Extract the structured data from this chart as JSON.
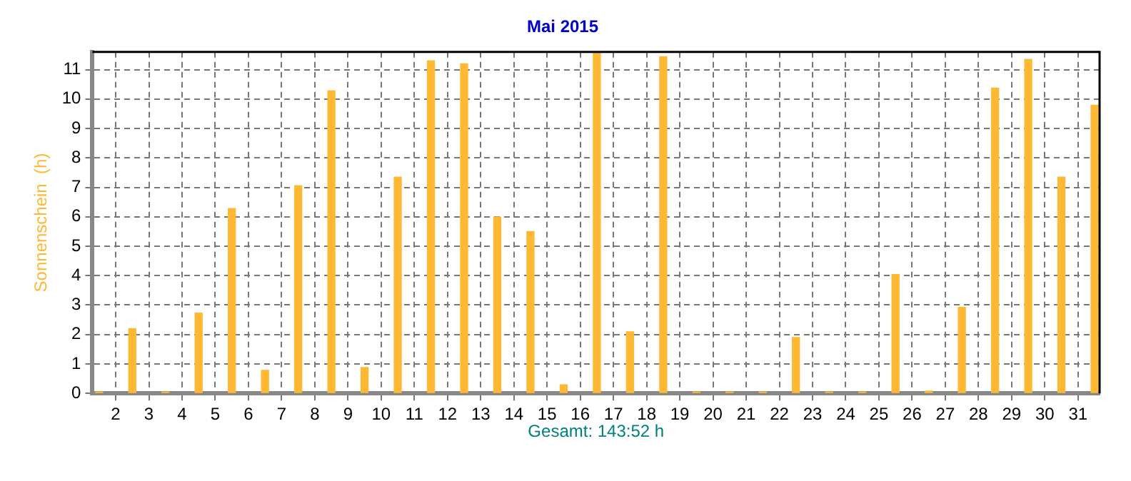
{
  "chart_data": {
    "type": "bar",
    "title": "Mai 2015",
    "ylabel": "Sonnenschein  (h)",
    "annotations": [
      "Gesamt: 143:52 h"
    ],
    "x": [
      1.5,
      2.5,
      3.5,
      4.5,
      5.5,
      6.5,
      7.5,
      8.5,
      9.5,
      10.5,
      11.5,
      12.5,
      13.5,
      14.5,
      15.5,
      16.5,
      17.5,
      18.5,
      19.5,
      20.5,
      21.5,
      22.5,
      23.5,
      24.5,
      25.5,
      26.5,
      27.5,
      28.5,
      29.5,
      30.5,
      31.5
    ],
    "values": [
      0.05,
      2.2,
      0.05,
      2.73,
      6.28,
      0.78,
      7.06,
      10.28,
      0.88,
      7.35,
      11.3,
      11.2,
      5.99,
      5.5,
      0.29,
      11.6,
      2.09,
      11.44,
      0.05,
      0.05,
      0.05,
      1.9,
      0.05,
      0.05,
      4.04,
      0.08,
      2.92,
      10.37,
      11.35,
      7.35,
      9.79
    ],
    "color": "#ffb833",
    "xlim": [
      1.3,
      31.65
    ],
    "xticks": [
      2,
      3,
      4,
      5,
      6,
      7,
      8,
      9,
      10,
      11,
      12,
      13,
      14,
      15,
      16,
      17,
      18,
      19,
      20,
      21,
      22,
      23,
      24,
      25,
      26,
      27,
      28,
      29,
      30,
      31
    ],
    "ylim": [
      0,
      11.6
    ],
    "yticks": [
      0,
      1,
      2,
      3,
      4,
      5,
      6,
      7,
      8,
      9,
      10,
      11
    ],
    "grid": true,
    "legend": false
  }
}
